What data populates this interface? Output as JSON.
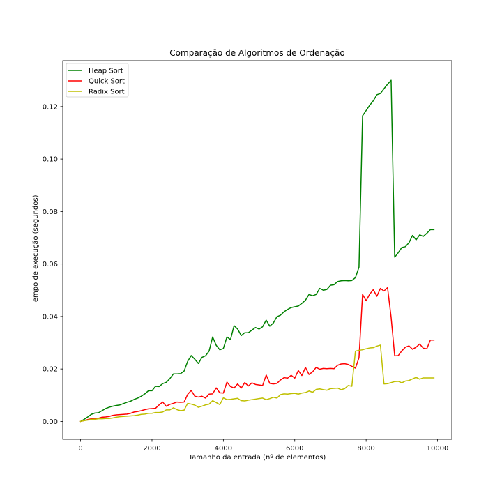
{
  "chart_data": {
    "type": "line",
    "title": "Comparação de Algoritmos de Ordenação",
    "xlabel": "Tamanho da entrada (nº de elementos)",
    "ylabel": "Tempo de execução (segundos)",
    "xlim": [
      -500,
      10400
    ],
    "ylim": [
      -0.0068,
      0.1375
    ],
    "x_ticks": [
      0,
      2000,
      4000,
      6000,
      8000,
      10000
    ],
    "x_tick_labels": [
      "0",
      "2000",
      "4000",
      "6000",
      "8000",
      "10000"
    ],
    "y_ticks": [
      0.0,
      0.02,
      0.04,
      0.06,
      0.08,
      0.1,
      0.12
    ],
    "y_tick_labels": [
      "0.00",
      "0.02",
      "0.04",
      "0.06",
      "0.08",
      "0.10",
      "0.12"
    ],
    "grid": false,
    "legend_position": "top-left",
    "series": [
      {
        "name": "Heap Sort",
        "color": "#008000",
        "x": [
          0,
          100,
          200,
          300,
          400,
          500,
          600,
          700,
          800,
          900,
          1000,
          1100,
          1200,
          1300,
          1400,
          1500,
          1600,
          1700,
          1800,
          1900,
          2000,
          2100,
          2200,
          2300,
          2400,
          2500,
          2600,
          2700,
          2800,
          2900,
          3000,
          3100,
          3200,
          3300,
          3400,
          3500,
          3600,
          3700,
          3800,
          3900,
          4000,
          4100,
          4200,
          4300,
          4400,
          4500,
          4600,
          4700,
          4800,
          4900,
          5000,
          5100,
          5200,
          5300,
          5400,
          5500,
          5600,
          5700,
          5800,
          5900,
          6000,
          6100,
          6200,
          6300,
          6400,
          6500,
          6600,
          6700,
          6800,
          6900,
          7000,
          7100,
          7200,
          7300,
          7400,
          7500,
          7600,
          7700,
          7800,
          7900,
          8000,
          8100,
          8200,
          8300,
          8400,
          8500,
          8600,
          8700,
          8800,
          8900,
          9000,
          9100,
          9200,
          9300,
          9400,
          9500,
          9600,
          9700,
          9800,
          9900
        ],
        "values": [
          0.0,
          0.0008,
          0.0017,
          0.0027,
          0.0032,
          0.0033,
          0.0041,
          0.0049,
          0.0054,
          0.0058,
          0.0061,
          0.0063,
          0.0068,
          0.0073,
          0.0077,
          0.0084,
          0.0089,
          0.0096,
          0.0105,
          0.0117,
          0.0117,
          0.0134,
          0.0133,
          0.0144,
          0.0149,
          0.0163,
          0.0181,
          0.0181,
          0.0182,
          0.0192,
          0.0229,
          0.0251,
          0.0237,
          0.0221,
          0.0244,
          0.025,
          0.0268,
          0.0322,
          0.029,
          0.0273,
          0.0278,
          0.0322,
          0.0312,
          0.0365,
          0.0352,
          0.0327,
          0.0338,
          0.0338,
          0.0348,
          0.0358,
          0.0352,
          0.0361,
          0.0386,
          0.0363,
          0.0375,
          0.0399,
          0.0405,
          0.0418,
          0.0427,
          0.0434,
          0.0437,
          0.044,
          0.045,
          0.0462,
          0.0484,
          0.0479,
          0.0484,
          0.0507,
          0.05,
          0.0503,
          0.0519,
          0.0521,
          0.0533,
          0.0536,
          0.0537,
          0.0536,
          0.0537,
          0.0548,
          0.0588,
          0.1165,
          0.1185,
          0.1205,
          0.1222,
          0.1245,
          0.125,
          0.1268,
          0.1285,
          0.13,
          0.0626,
          0.0643,
          0.0663,
          0.0666,
          0.0681,
          0.0709,
          0.0692,
          0.0711,
          0.0705,
          0.0717,
          0.0731,
          0.0731
        ]
      },
      {
        "name": "Quick Sort",
        "color": "#ff0000",
        "x": [
          0,
          100,
          200,
          300,
          400,
          500,
          600,
          700,
          800,
          900,
          1000,
          1100,
          1200,
          1300,
          1400,
          1500,
          1600,
          1700,
          1800,
          1900,
          2000,
          2100,
          2200,
          2300,
          2400,
          2500,
          2600,
          2700,
          2800,
          2900,
          3000,
          3100,
          3200,
          3300,
          3400,
          3500,
          3600,
          3700,
          3800,
          3900,
          4000,
          4100,
          4200,
          4300,
          4400,
          4500,
          4600,
          4700,
          4800,
          4900,
          5000,
          5100,
          5200,
          5300,
          5400,
          5500,
          5600,
          5700,
          5800,
          5900,
          6000,
          6100,
          6200,
          6300,
          6400,
          6500,
          6600,
          6700,
          6800,
          6900,
          7000,
          7100,
          7200,
          7300,
          7400,
          7500,
          7600,
          7700,
          7800,
          7900,
          8000,
          8100,
          8200,
          8300,
          8400,
          8500,
          8600,
          8700,
          8800,
          8900,
          9000,
          9100,
          9200,
          9300,
          9400,
          9500,
          9600,
          9700,
          9800,
          9900
        ],
        "values": [
          0.0,
          0.0003,
          0.0007,
          0.001,
          0.0012,
          0.0012,
          0.0016,
          0.0017,
          0.0019,
          0.0023,
          0.0025,
          0.0026,
          0.0027,
          0.0028,
          0.0031,
          0.0036,
          0.0038,
          0.0041,
          0.0045,
          0.0048,
          0.0049,
          0.005,
          0.0063,
          0.0074,
          0.0058,
          0.0065,
          0.0069,
          0.0074,
          0.0073,
          0.0074,
          0.0103,
          0.0118,
          0.0096,
          0.0093,
          0.0096,
          0.0089,
          0.0104,
          0.0105,
          0.0128,
          0.0109,
          0.0108,
          0.015,
          0.0133,
          0.0127,
          0.0143,
          0.0127,
          0.0148,
          0.0135,
          0.0147,
          0.0141,
          0.0139,
          0.0137,
          0.0177,
          0.0145,
          0.0143,
          0.0145,
          0.0158,
          0.0167,
          0.0165,
          0.0176,
          0.0165,
          0.0194,
          0.0175,
          0.0206,
          0.0179,
          0.0189,
          0.0206,
          0.0199,
          0.0202,
          0.0201,
          0.0202,
          0.0201,
          0.0214,
          0.0219,
          0.022,
          0.0217,
          0.021,
          0.0203,
          0.0243,
          0.0484,
          0.046,
          0.0485,
          0.0502,
          0.0477,
          0.0507,
          0.0497,
          0.051,
          0.0397,
          0.025,
          0.0251,
          0.0269,
          0.0283,
          0.0288,
          0.0275,
          0.0283,
          0.0295,
          0.0279,
          0.0277,
          0.031,
          0.031
        ]
      },
      {
        "name": "Radix Sort",
        "color": "#bfbf00",
        "x": [
          0,
          100,
          200,
          300,
          400,
          500,
          600,
          700,
          800,
          900,
          1000,
          1100,
          1200,
          1300,
          1400,
          1500,
          1600,
          1700,
          1800,
          1900,
          2000,
          2100,
          2200,
          2300,
          2400,
          2500,
          2600,
          2700,
          2800,
          2900,
          3000,
          3100,
          3200,
          3300,
          3400,
          3500,
          3600,
          3700,
          3800,
          3900,
          4000,
          4100,
          4200,
          4300,
          4400,
          4500,
          4600,
          4700,
          4800,
          4900,
          5000,
          5100,
          5200,
          5300,
          5400,
          5500,
          5600,
          5700,
          5800,
          5900,
          6000,
          6100,
          6200,
          6300,
          6400,
          6500,
          6600,
          6700,
          6800,
          6900,
          7000,
          7100,
          7200,
          7300,
          7400,
          7500,
          7600,
          7700,
          7800,
          7900,
          8000,
          8100,
          8200,
          8300,
          8400,
          8500,
          8600,
          8700,
          8800,
          8900,
          9000,
          9100,
          9200,
          9300,
          9400,
          9500,
          9600,
          9700,
          9800,
          9900
        ],
        "values": [
          0.0,
          0.0003,
          0.0005,
          0.0008,
          0.0008,
          0.001,
          0.001,
          0.0011,
          0.0011,
          0.0013,
          0.0016,
          0.0018,
          0.0019,
          0.002,
          0.0021,
          0.0022,
          0.0024,
          0.0027,
          0.0028,
          0.0031,
          0.0031,
          0.0034,
          0.0034,
          0.0036,
          0.0044,
          0.0044,
          0.0052,
          0.0045,
          0.0041,
          0.0043,
          0.0069,
          0.0066,
          0.0062,
          0.0054,
          0.0058,
          0.0063,
          0.0066,
          0.0079,
          0.0072,
          0.0064,
          0.009,
          0.0083,
          0.0084,
          0.0086,
          0.0088,
          0.0079,
          0.0078,
          0.0081,
          0.0083,
          0.0085,
          0.0087,
          0.0089,
          0.0083,
          0.0087,
          0.0092,
          0.0089,
          0.0102,
          0.0105,
          0.0104,
          0.0106,
          0.0107,
          0.0104,
          0.0108,
          0.011,
          0.0116,
          0.0111,
          0.0122,
          0.0124,
          0.0121,
          0.0119,
          0.0125,
          0.0126,
          0.0127,
          0.0121,
          0.0125,
          0.0137,
          0.0134,
          0.0268,
          0.0271,
          0.0273,
          0.0277,
          0.028,
          0.0281,
          0.0287,
          0.0291,
          0.0143,
          0.0144,
          0.0148,
          0.0152,
          0.0153,
          0.0147,
          0.0154,
          0.0156,
          0.0162,
          0.0168,
          0.0161,
          0.0166,
          0.0166,
          0.0166,
          0.0166
        ]
      }
    ]
  }
}
